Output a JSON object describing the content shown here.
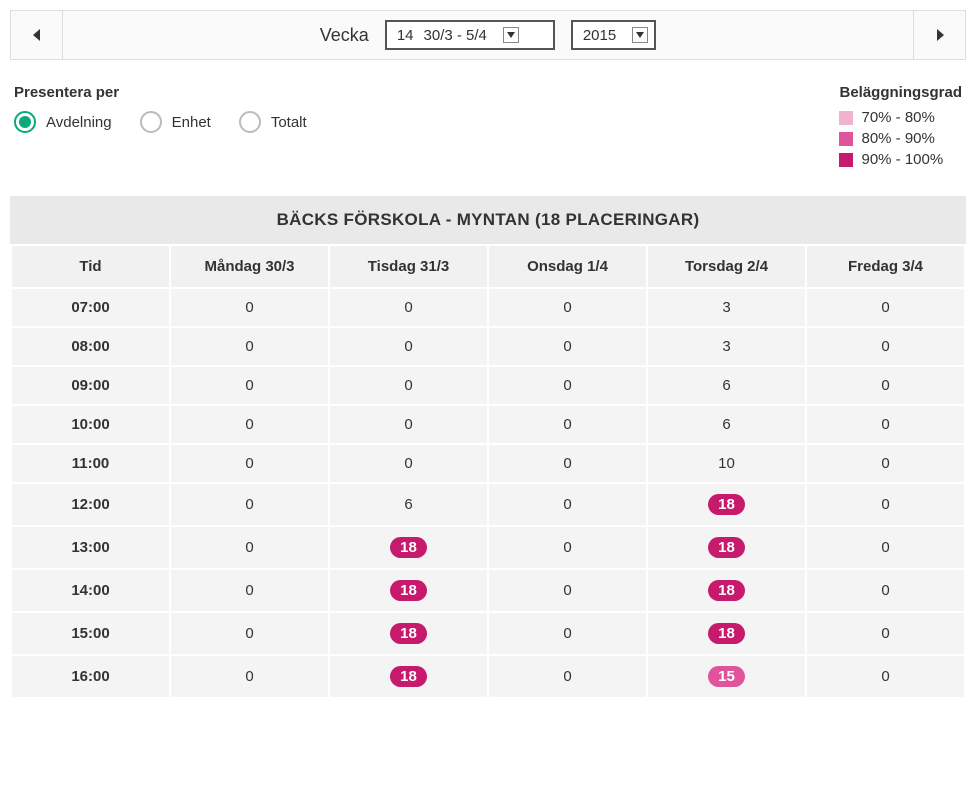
{
  "colors": {
    "accent_green": "#0aa87a",
    "pill_90_100": "#c61a6c",
    "pill_80_90": "#e0549c",
    "pill_70_80": "#f1b2d1",
    "header_bg": "#e9e9e9",
    "cell_bg": "#f4f4f4"
  },
  "weekbar": {
    "label": "Vecka",
    "week_number": "14",
    "week_range": "30/3 - 5/4",
    "year": "2015"
  },
  "filter": {
    "title": "Presentera per",
    "options": [
      {
        "id": "avdelning",
        "label": "Avdelning",
        "selected": true
      },
      {
        "id": "enhet",
        "label": "Enhet",
        "selected": false
      },
      {
        "id": "totalt",
        "label": "Totalt",
        "selected": false
      }
    ]
  },
  "legend": {
    "title": "Beläggningsgrad",
    "items": [
      {
        "label": "70% - 80%",
        "color": "#f1b2d1"
      },
      {
        "label": "80% - 90%",
        "color": "#e0549c"
      },
      {
        "label": "90% - 100%",
        "color": "#c61a6c"
      }
    ]
  },
  "table": {
    "title": "BÄCKS FÖRSKOLA - MYNTAN (18 PLACERINGAR)",
    "time_header": "Tid",
    "days": [
      "Måndag 30/3",
      "Tisdag 31/3",
      "Onsdag 1/4",
      "Torsdag 2/4",
      "Fredag 3/4"
    ],
    "rows": [
      {
        "time": "07:00",
        "values": [
          0,
          0,
          0,
          3,
          0
        ]
      },
      {
        "time": "08:00",
        "values": [
          0,
          0,
          0,
          3,
          0
        ]
      },
      {
        "time": "09:00",
        "values": [
          0,
          0,
          0,
          6,
          0
        ]
      },
      {
        "time": "10:00",
        "values": [
          0,
          0,
          0,
          6,
          0
        ]
      },
      {
        "time": "11:00",
        "values": [
          0,
          0,
          0,
          10,
          0
        ]
      },
      {
        "time": "12:00",
        "values": [
          0,
          6,
          0,
          18,
          0
        ]
      },
      {
        "time": "13:00",
        "values": [
          0,
          18,
          0,
          18,
          0
        ]
      },
      {
        "time": "14:00",
        "values": [
          0,
          18,
          0,
          18,
          0
        ]
      },
      {
        "time": "15:00",
        "values": [
          0,
          18,
          0,
          18,
          0
        ]
      },
      {
        "time": "16:00",
        "values": [
          0,
          18,
          0,
          15,
          0
        ]
      }
    ],
    "capacity": 18,
    "thresholds": {
      "t70": 0.7,
      "t80": 0.8,
      "t90": 0.9
    }
  }
}
